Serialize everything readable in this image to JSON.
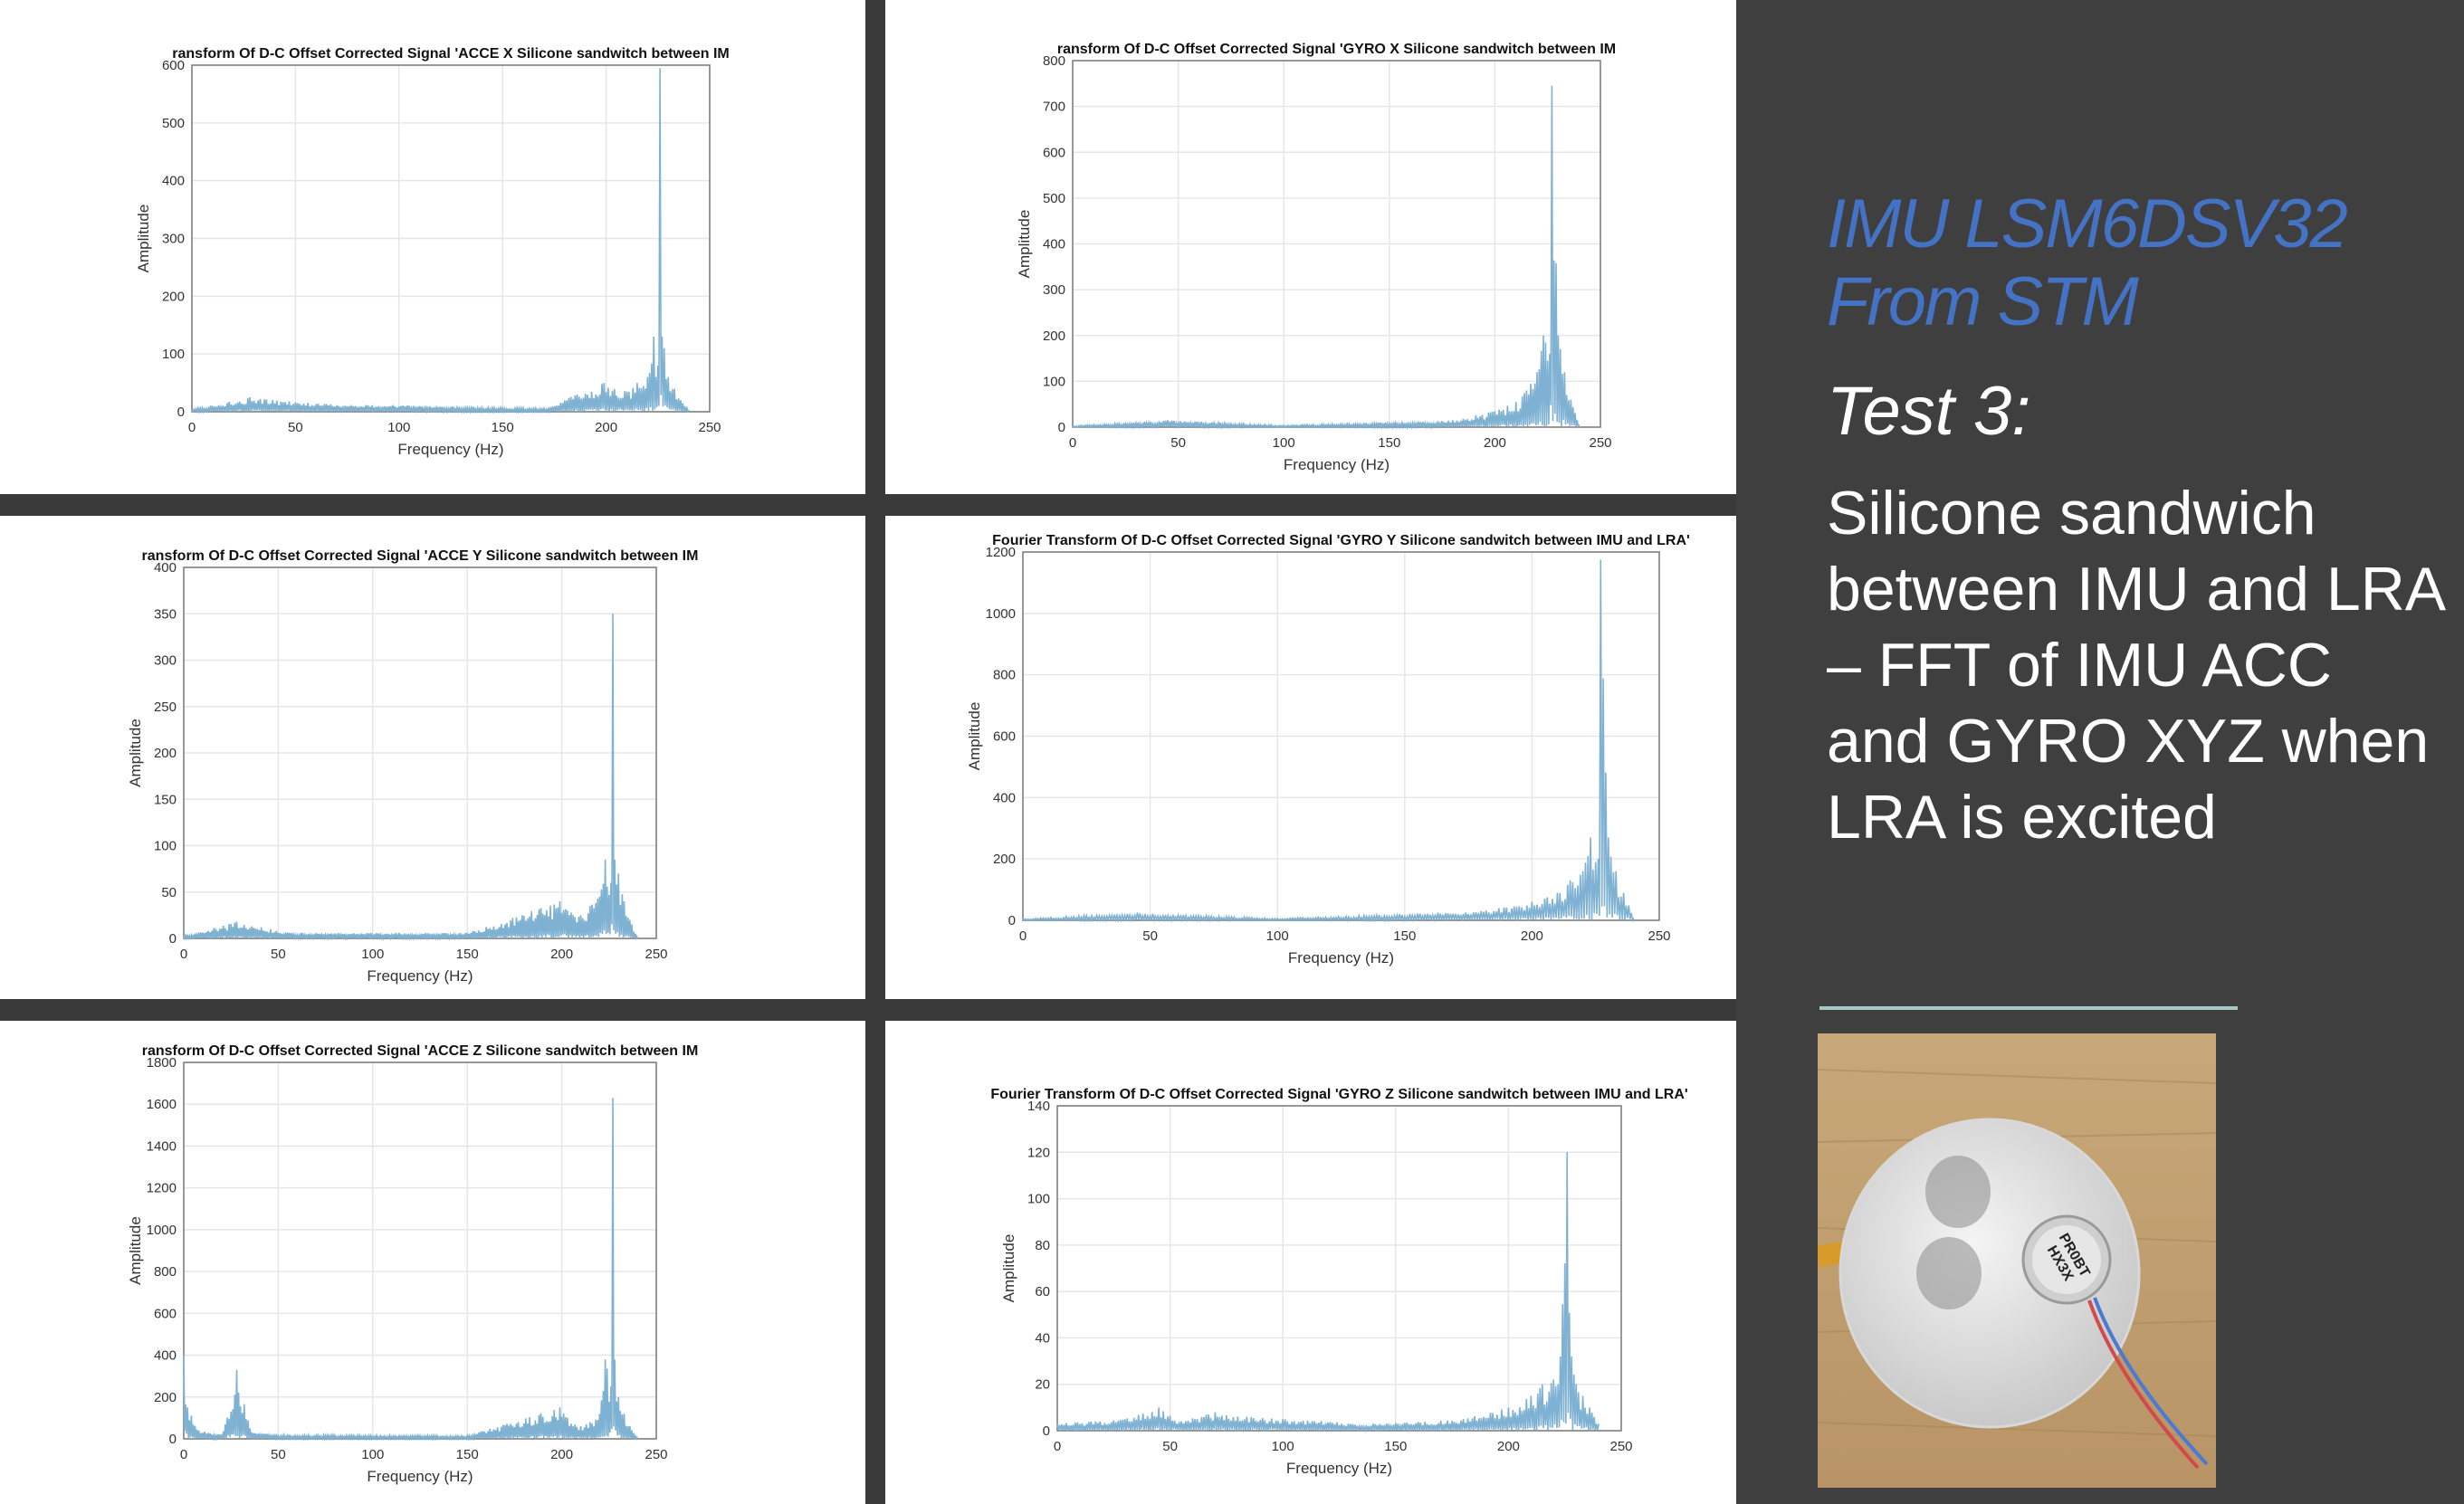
{
  "slide": {
    "heading_line1": "IMU LSM6DSV32",
    "heading_line2": "From STM",
    "test_label": "Test 3:",
    "description": "Silicone sandwich between IMU and LRA – FFT of IMU ACC and GYRO XYZ when LRA is excited",
    "heading_color": "#4472c4",
    "text_color": "#ffffff",
    "background_color": "#3f3f3f",
    "photo_label_text": "PR0BT HX3X"
  },
  "chart_data": [
    {
      "type": "line",
      "title": "ransform Of D-C Offset Corrected Signal 'ACCE X Silicone sandwitch between IM",
      "xlabel": "Frequency (Hz)",
      "ylabel": "Amplitude",
      "xlim": [
        0,
        250
      ],
      "ylim": [
        0,
        600
      ],
      "xticks": [
        0,
        50,
        100,
        150,
        200,
        250
      ],
      "yticks": [
        0,
        100,
        200,
        300,
        400,
        500,
        600
      ],
      "grid": true,
      "color": "#7fb1d3",
      "series": [
        {
          "x": [
            0,
            28,
            56,
            170,
            199,
            210,
            215,
            220,
            223,
            225,
            226,
            227,
            228,
            230,
            233,
            236,
            240
          ],
          "y": [
            4,
            25,
            15,
            6,
            50,
            35,
            50,
            60,
            130,
            80,
            595,
            130,
            110,
            60,
            40,
            20,
            3
          ]
        }
      ]
    },
    {
      "type": "line",
      "title": "ransform Of D-C Offset Corrected Signal 'GYRO X Silicone sandwitch between IM",
      "xlabel": "Frequency (Hz)",
      "ylabel": "Amplitude",
      "xlim": [
        0,
        250
      ],
      "ylim": [
        0,
        800
      ],
      "xticks": [
        0,
        50,
        100,
        150,
        200,
        250
      ],
      "yticks": [
        0,
        100,
        200,
        300,
        400,
        500,
        600,
        700,
        800
      ],
      "grid": true,
      "color": "#7fb1d3",
      "series": [
        {
          "x": [
            0,
            45,
            100,
            180,
            200,
            210,
            215,
            220,
            223,
            226,
            227,
            230,
            233,
            236,
            240
          ],
          "y": [
            3,
            15,
            4,
            15,
            35,
            55,
            80,
            120,
            200,
            160,
            745,
            200,
            120,
            60,
            5
          ]
        }
      ]
    },
    {
      "type": "line",
      "title": "ransform Of D-C Offset Corrected Signal 'ACCE Y Silicone sandwitch between IM",
      "xlabel": "Frequency (Hz)",
      "ylabel": "Amplitude",
      "xlim": [
        0,
        250
      ],
      "ylim": [
        0,
        400
      ],
      "xticks": [
        0,
        50,
        100,
        150,
        200,
        250
      ],
      "yticks": [
        0,
        50,
        100,
        150,
        200,
        250,
        300,
        350,
        400
      ],
      "grid": true,
      "color": "#7fb1d3",
      "series": [
        {
          "x": [
            0,
            28,
            56,
            150,
            199,
            210,
            215,
            220,
            223,
            226,
            227,
            228,
            230,
            233,
            236,
            240
          ],
          "y": [
            3,
            18,
            6,
            6,
            40,
            25,
            35,
            45,
            85,
            60,
            350,
            85,
            70,
            40,
            20,
            3
          ]
        }
      ]
    },
    {
      "type": "line",
      "title": "Fourier Transform Of D-C Offset Corrected Signal 'GYRO Y Silicone sandwitch between IMU and LRA'",
      "xlabel": "Frequency (Hz)",
      "ylabel": "Amplitude",
      "xlim": [
        0,
        250
      ],
      "ylim": [
        0,
        1200
      ],
      "xticks": [
        0,
        50,
        100,
        150,
        200,
        250
      ],
      "yticks": [
        0,
        200,
        400,
        600,
        800,
        1000,
        1200
      ],
      "grid": true,
      "color": "#7fb1d3",
      "series": [
        {
          "x": [
            0,
            45,
            100,
            180,
            200,
            210,
            215,
            220,
            223,
            226,
            227,
            230,
            233,
            236,
            240
          ],
          "y": [
            5,
            25,
            6,
            30,
            60,
            90,
            130,
            160,
            270,
            200,
            1175,
            270,
            160,
            90,
            8
          ]
        }
      ]
    },
    {
      "type": "line",
      "title": "ransform Of D-C Offset Corrected Signal 'ACCE Z Silicone sandwitch between IM",
      "xlabel": "Frequency (Hz)",
      "ylabel": "Amplitude",
      "xlim": [
        0,
        250
      ],
      "ylim": [
        0,
        1800
      ],
      "xticks": [
        0,
        50,
        100,
        150,
        200,
        250
      ],
      "yticks": [
        0,
        200,
        400,
        600,
        800,
        1000,
        1200,
        1400,
        1600,
        1800
      ],
      "grid": true,
      "color": "#7fb1d3",
      "series": [
        {
          "x": [
            0,
            2,
            8,
            20,
            28,
            36,
            56,
            150,
            199,
            210,
            215,
            220,
            223,
            226,
            227,
            228,
            230,
            233,
            236,
            240
          ],
          "y": [
            400,
            150,
            40,
            20,
            330,
            30,
            20,
            15,
            150,
            60,
            80,
            120,
            380,
            250,
            1630,
            380,
            200,
            120,
            60,
            10
          ]
        }
      ]
    },
    {
      "type": "line",
      "title": "Fourier Transform Of D-C Offset Corrected Signal 'GYRO Z Silicone sandwitch between IMU and LRA'",
      "xlabel": "Frequency (Hz)",
      "ylabel": "Amplitude",
      "xlim": [
        0,
        250
      ],
      "ylim": [
        0,
        140
      ],
      "xticks": [
        0,
        50,
        100,
        150,
        200,
        250
      ],
      "yticks": [
        0,
        20,
        40,
        60,
        80,
        100,
        120,
        140
      ],
      "grid": true,
      "color": "#7fb1d3",
      "series": [
        {
          "x": [
            0,
            15,
            30,
            45,
            55,
            70,
            100,
            140,
            180,
            200,
            210,
            215,
            220,
            223,
            226,
            228,
            230,
            233,
            236,
            240
          ],
          "y": [
            3,
            4,
            5,
            10,
            4,
            8,
            5,
            3,
            5,
            10,
            15,
            20,
            22,
            32,
            120,
            32,
            20,
            15,
            10,
            3
          ]
        }
      ]
    }
  ]
}
